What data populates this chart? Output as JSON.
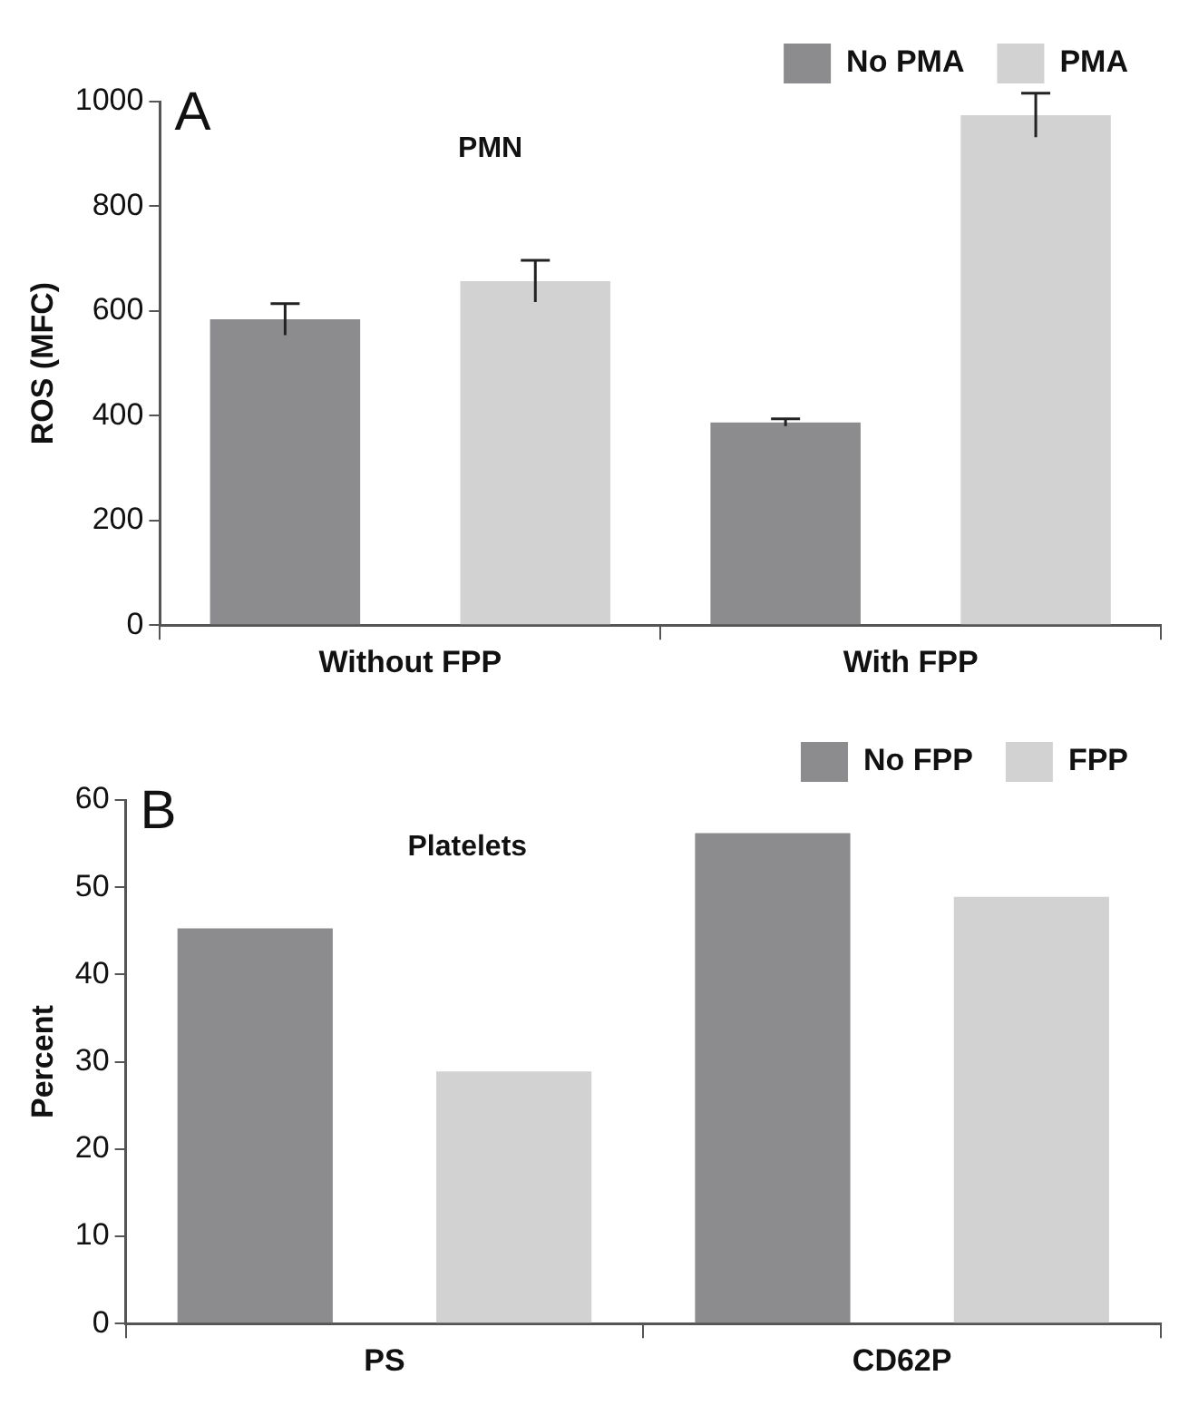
{
  "chart_data": [
    {
      "type": "bar",
      "title": "PMN",
      "ylabel": "ROS (MFC)",
      "annotations": [
        "A"
      ],
      "categories": [
        "Without FPP",
        "With FPP"
      ],
      "series": [
        {
          "name": "No PMA",
          "color": "#8c8c8e",
          "values": [
            584,
            387
          ],
          "errors": [
            30,
            7
          ]
        },
        {
          "name": "PMA",
          "color": "#d2d2d2",
          "values": [
            657,
            974
          ],
          "errors": [
            40,
            42
          ]
        }
      ],
      "ylim": [
        0,
        1000
      ],
      "yticks": [
        0,
        200,
        400,
        600,
        800,
        1000
      ],
      "grid": false,
      "legend": "top right"
    },
    {
      "type": "bar",
      "title": "Platelets",
      "ylabel": "Percent",
      "annotations": [
        "B"
      ],
      "categories": [
        "PS",
        "CD62P"
      ],
      "series": [
        {
          "name": "No FPP",
          "color": "#8c8c8e",
          "values": [
            45.3,
            56.2
          ]
        },
        {
          "name": "FPP",
          "color": "#d2d2d2",
          "values": [
            28.9,
            48.9
          ]
        }
      ],
      "ylim": [
        0,
        60
      ],
      "yticks": [
        0,
        10,
        20,
        30,
        40,
        50,
        60
      ],
      "grid": false,
      "legend": "top right"
    }
  ]
}
